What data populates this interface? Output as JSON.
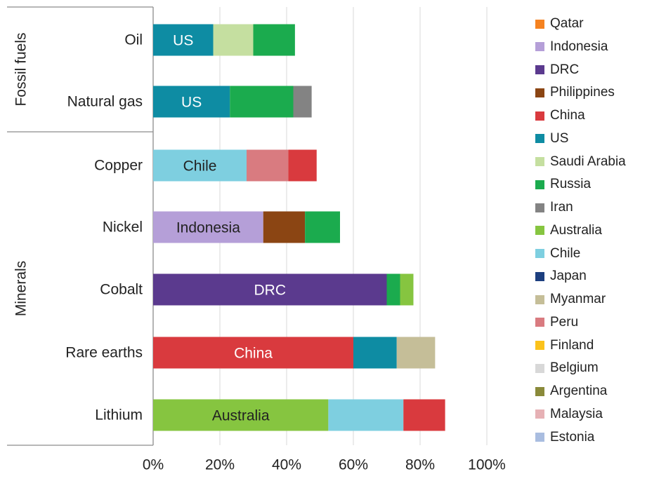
{
  "chart_data": {
    "type": "bar",
    "orientation": "horizontal",
    "stacked": true,
    "groups": [
      {
        "label": "Fossil fuels",
        "categories": [
          "Oil",
          "Natural gas"
        ]
      },
      {
        "label": "Minerals",
        "categories": [
          "Copper",
          "Nickel",
          "Cobalt",
          "Rare earths",
          "Lithium"
        ]
      }
    ],
    "categories": [
      "Oil",
      "Natural gas",
      "Copper",
      "Nickel",
      "Cobalt",
      "Rare earths",
      "Lithium"
    ],
    "bars": [
      {
        "category": "Oil",
        "segments": [
          {
            "country": "US",
            "value": 18,
            "label": "US"
          },
          {
            "country": "Saudi Arabia",
            "value": 12
          },
          {
            "country": "Russia",
            "value": 12.5
          }
        ]
      },
      {
        "category": "Natural gas",
        "segments": [
          {
            "country": "US",
            "value": 23,
            "label": "US"
          },
          {
            "country": "Russia",
            "value": 19
          },
          {
            "country": "Iran",
            "value": 5.5
          }
        ]
      },
      {
        "category": "Copper",
        "segments": [
          {
            "country": "Chile",
            "value": 28,
            "label": "Chile"
          },
          {
            "country": "Peru",
            "value": 12.5
          },
          {
            "country": "China",
            "value": 8.5
          }
        ]
      },
      {
        "category": "Nickel",
        "segments": [
          {
            "country": "Indonesia",
            "value": 33,
            "label": "Indonesia"
          },
          {
            "country": "Philippines",
            "value": 12.5
          },
          {
            "country": "Russia",
            "value": 10.5
          }
        ]
      },
      {
        "category": "Cobalt",
        "segments": [
          {
            "country": "DRC",
            "value": 70,
            "label": "DRC"
          },
          {
            "country": "Russia",
            "value": 4
          },
          {
            "country": "Australia",
            "value": 4
          }
        ]
      },
      {
        "category": "Rare earths",
        "segments": [
          {
            "country": "China",
            "value": 60,
            "label": "China"
          },
          {
            "country": "US",
            "value": 13
          },
          {
            "country": "Myanmar",
            "value": 11.5
          }
        ]
      },
      {
        "category": "Lithium",
        "segments": [
          {
            "country": "Australia",
            "value": 52.5,
            "label": "Australia"
          },
          {
            "country": "Chile",
            "value": 22.5
          },
          {
            "country": "China",
            "value": 12.5
          }
        ]
      }
    ],
    "legend": [
      {
        "name": "Qatar",
        "color": "#f58220"
      },
      {
        "name": "Indonesia",
        "color": "#b59fd8"
      },
      {
        "name": "DRC",
        "color": "#5b3a8e"
      },
      {
        "name": "Philippines",
        "color": "#8b4513"
      },
      {
        "name": "China",
        "color": "#d93a3e"
      },
      {
        "name": "US",
        "color": "#0e8ca3"
      },
      {
        "name": "Saudi Arabia",
        "color": "#c5dfa0"
      },
      {
        "name": "Russia",
        "color": "#1bab4e"
      },
      {
        "name": "Iran",
        "color": "#838383"
      },
      {
        "name": "Australia",
        "color": "#86c540"
      },
      {
        "name": "Chile",
        "color": "#7ecfe0"
      },
      {
        "name": "Japan",
        "color": "#1d3f7f"
      },
      {
        "name": "Myanmar",
        "color": "#c5be98"
      },
      {
        "name": "Peru",
        "color": "#d97b80"
      },
      {
        "name": "Finland",
        "color": "#fbc21b"
      },
      {
        "name": "Belgium",
        "color": "#d8d8d8"
      },
      {
        "name": "Argentina",
        "color": "#8a8a3a"
      },
      {
        "name": "Malaysia",
        "color": "#e6b1b5"
      },
      {
        "name": "Estonia",
        "color": "#a9bde0"
      }
    ],
    "legend_position": "right",
    "xlim": [
      0,
      100
    ],
    "xticks": [
      "0%",
      "20%",
      "40%",
      "60%",
      "80%",
      "100%"
    ],
    "grid": "vertical",
    "title": "",
    "xlabel": "",
    "ylabel": ""
  }
}
